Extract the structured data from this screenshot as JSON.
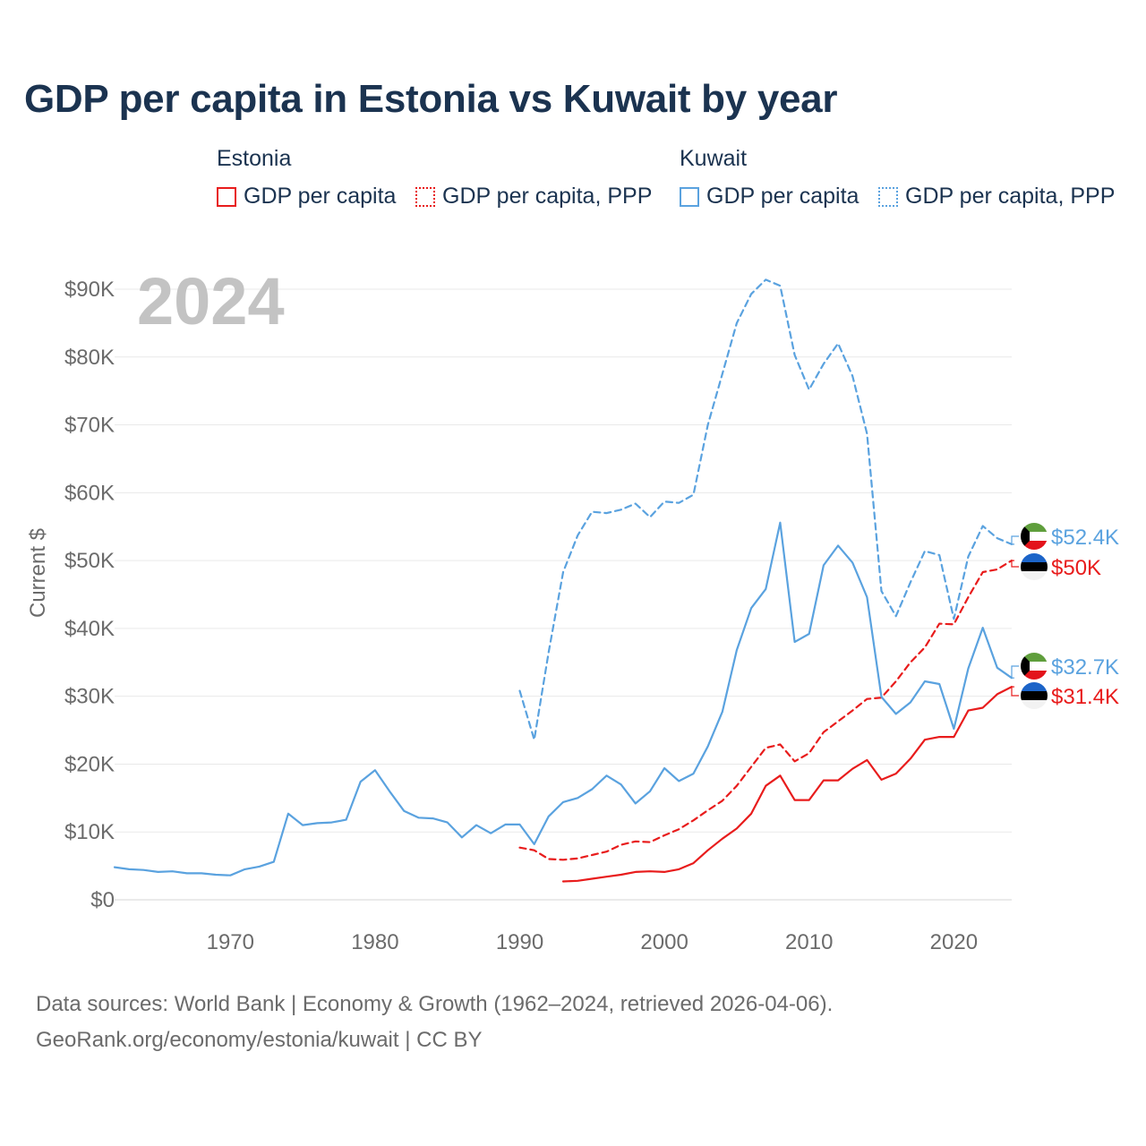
{
  "title": "GDP per capita in Estonia vs Kuwait by year",
  "legend": {
    "groups": [
      {
        "name": "Estonia",
        "items": [
          {
            "label": "GDP per capita",
            "color": "#e81c1c",
            "style": "solid"
          },
          {
            "label": "GDP per capita, PPP",
            "color": "#e81c1c",
            "style": "dotted"
          }
        ]
      },
      {
        "name": "Kuwait",
        "items": [
          {
            "label": "GDP per capita",
            "color": "#5aa2df",
            "style": "solid"
          },
          {
            "label": "GDP per capita, PPP",
            "color": "#5aa2df",
            "style": "dotted"
          }
        ]
      }
    ]
  },
  "footer": {
    "line1": "Data sources: World Bank | Economy & Growth (1962–2024, retrieved 2026-04-06).",
    "line2": "GeoRank.org/economy/estonia/kuwait | CC BY"
  },
  "chart_data": {
    "type": "line",
    "title": "GDP per capita in Estonia vs Kuwait by year",
    "year_label": "2024",
    "xlabel": "",
    "ylabel": "Current $",
    "xlim": [
      1962,
      2024
    ],
    "ylim": [
      0,
      90000
    ],
    "x_ticks": [
      "1970",
      "1980",
      "1990",
      "2000",
      "2010",
      "2020"
    ],
    "y_ticks": [
      "$0",
      "$10K",
      "$20K",
      "$30K",
      "$40K",
      "$50K",
      "$60K",
      "$70K",
      "$80K",
      "$90K"
    ],
    "grid": true,
    "series": [
      {
        "name": "Kuwait GDP per capita, PPP",
        "country": "Kuwait",
        "color": "#5aa2df",
        "dash": "dashed",
        "end_label": "$52.4K",
        "label_side": "upper",
        "points": [
          [
            1990,
            30800
          ],
          [
            1991,
            23600
          ],
          [
            1992,
            36500
          ],
          [
            1993,
            48300
          ],
          [
            1994,
            53700
          ],
          [
            1995,
            57200
          ],
          [
            1996,
            57000
          ],
          [
            1997,
            57500
          ],
          [
            1998,
            58400
          ],
          [
            1999,
            56400
          ],
          [
            2000,
            58700
          ],
          [
            2001,
            58500
          ],
          [
            2002,
            59700
          ],
          [
            2003,
            70000
          ],
          [
            2004,
            77500
          ],
          [
            2005,
            85000
          ],
          [
            2006,
            89300
          ],
          [
            2007,
            91400
          ],
          [
            2008,
            90500
          ],
          [
            2009,
            80300
          ],
          [
            2010,
            75200
          ],
          [
            2011,
            79000
          ],
          [
            2012,
            82000
          ],
          [
            2013,
            77200
          ],
          [
            2014,
            68700
          ],
          [
            2015,
            45500
          ],
          [
            2016,
            41800
          ],
          [
            2017,
            46800
          ],
          [
            2018,
            51400
          ],
          [
            2019,
            50800
          ],
          [
            2020,
            41400
          ],
          [
            2021,
            50600
          ],
          [
            2022,
            55100
          ],
          [
            2023,
            53300
          ],
          [
            2024,
            52400
          ]
        ]
      },
      {
        "name": "Estonia GDP per capita, PPP",
        "country": "Estonia",
        "color": "#e81c1c",
        "dash": "dashed",
        "end_label": "$50K",
        "label_side": "lower",
        "points": [
          [
            1990,
            7700
          ],
          [
            1991,
            7300
          ],
          [
            1992,
            6000
          ],
          [
            1993,
            5900
          ],
          [
            1994,
            6100
          ],
          [
            1995,
            6600
          ],
          [
            1996,
            7100
          ],
          [
            1997,
            8100
          ],
          [
            1998,
            8600
          ],
          [
            1999,
            8500
          ],
          [
            2000,
            9500
          ],
          [
            2001,
            10400
          ],
          [
            2002,
            11700
          ],
          [
            2003,
            13200
          ],
          [
            2004,
            14600
          ],
          [
            2005,
            16800
          ],
          [
            2006,
            19600
          ],
          [
            2007,
            22400
          ],
          [
            2008,
            22900
          ],
          [
            2009,
            20400
          ],
          [
            2010,
            21600
          ],
          [
            2011,
            24700
          ],
          [
            2012,
            26300
          ],
          [
            2013,
            27900
          ],
          [
            2014,
            29600
          ],
          [
            2015,
            29800
          ],
          [
            2016,
            32200
          ],
          [
            2017,
            35000
          ],
          [
            2018,
            37200
          ],
          [
            2019,
            40700
          ],
          [
            2020,
            40600
          ],
          [
            2021,
            44600
          ],
          [
            2022,
            48300
          ],
          [
            2023,
            48700
          ],
          [
            2024,
            50000
          ]
        ]
      },
      {
        "name": "Kuwait GDP per capita",
        "country": "Kuwait",
        "color": "#5aa2df",
        "dash": "solid",
        "end_label": "$32.7K",
        "label_side": "upper",
        "points": [
          [
            1962,
            4800
          ],
          [
            1963,
            4500
          ],
          [
            1964,
            4400
          ],
          [
            1965,
            4100
          ],
          [
            1966,
            4200
          ],
          [
            1967,
            3900
          ],
          [
            1968,
            3900
          ],
          [
            1969,
            3700
          ],
          [
            1970,
            3600
          ],
          [
            1971,
            4500
          ],
          [
            1972,
            4900
          ],
          [
            1973,
            5600
          ],
          [
            1974,
            12700
          ],
          [
            1975,
            11000
          ],
          [
            1976,
            11300
          ],
          [
            1977,
            11400
          ],
          [
            1978,
            11800
          ],
          [
            1979,
            17400
          ],
          [
            1980,
            19100
          ],
          [
            1981,
            16000
          ],
          [
            1982,
            13100
          ],
          [
            1983,
            12100
          ],
          [
            1984,
            12000
          ],
          [
            1985,
            11400
          ],
          [
            1986,
            9200
          ],
          [
            1987,
            11000
          ],
          [
            1988,
            9800
          ],
          [
            1989,
            11100
          ],
          [
            1990,
            11100
          ],
          [
            1991,
            8200
          ],
          [
            1992,
            12300
          ],
          [
            1993,
            14400
          ],
          [
            1994,
            15000
          ],
          [
            1995,
            16300
          ],
          [
            1996,
            18300
          ],
          [
            1997,
            17000
          ],
          [
            1998,
            14200
          ],
          [
            1999,
            16000
          ],
          [
            2000,
            19400
          ],
          [
            2001,
            17500
          ],
          [
            2002,
            18600
          ],
          [
            2003,
            22600
          ],
          [
            2004,
            27700
          ],
          [
            2005,
            36800
          ],
          [
            2006,
            43000
          ],
          [
            2007,
            45800
          ],
          [
            2008,
            55600
          ],
          [
            2009,
            38000
          ],
          [
            2010,
            39200
          ],
          [
            2011,
            49300
          ],
          [
            2012,
            52200
          ],
          [
            2013,
            49700
          ],
          [
            2014,
            44600
          ],
          [
            2015,
            29900
          ],
          [
            2016,
            27400
          ],
          [
            2017,
            29100
          ],
          [
            2018,
            32200
          ],
          [
            2019,
            31800
          ],
          [
            2020,
            25200
          ],
          [
            2021,
            34100
          ],
          [
            2022,
            40100
          ],
          [
            2023,
            34200
          ],
          [
            2024,
            32700
          ]
        ]
      },
      {
        "name": "Estonia GDP per capita",
        "country": "Estonia",
        "color": "#e81c1c",
        "dash": "solid",
        "end_label": "$31.4K",
        "label_side": "lower",
        "points": [
          [
            1993,
            2700
          ],
          [
            1994,
            2800
          ],
          [
            1995,
            3100
          ],
          [
            1996,
            3400
          ],
          [
            1997,
            3700
          ],
          [
            1998,
            4100
          ],
          [
            1999,
            4200
          ],
          [
            2000,
            4100
          ],
          [
            2001,
            4500
          ],
          [
            2002,
            5400
          ],
          [
            2003,
            7300
          ],
          [
            2004,
            9000
          ],
          [
            2005,
            10500
          ],
          [
            2006,
            12700
          ],
          [
            2007,
            16800
          ],
          [
            2008,
            18300
          ],
          [
            2009,
            14700
          ],
          [
            2010,
            14700
          ],
          [
            2011,
            17600
          ],
          [
            2012,
            17600
          ],
          [
            2013,
            19300
          ],
          [
            2014,
            20600
          ],
          [
            2015,
            17700
          ],
          [
            2016,
            18600
          ],
          [
            2017,
            20800
          ],
          [
            2018,
            23600
          ],
          [
            2019,
            24000
          ],
          [
            2020,
            24000
          ],
          [
            2021,
            27900
          ],
          [
            2022,
            28300
          ],
          [
            2023,
            30300
          ],
          [
            2024,
            31400
          ]
        ]
      }
    ]
  }
}
